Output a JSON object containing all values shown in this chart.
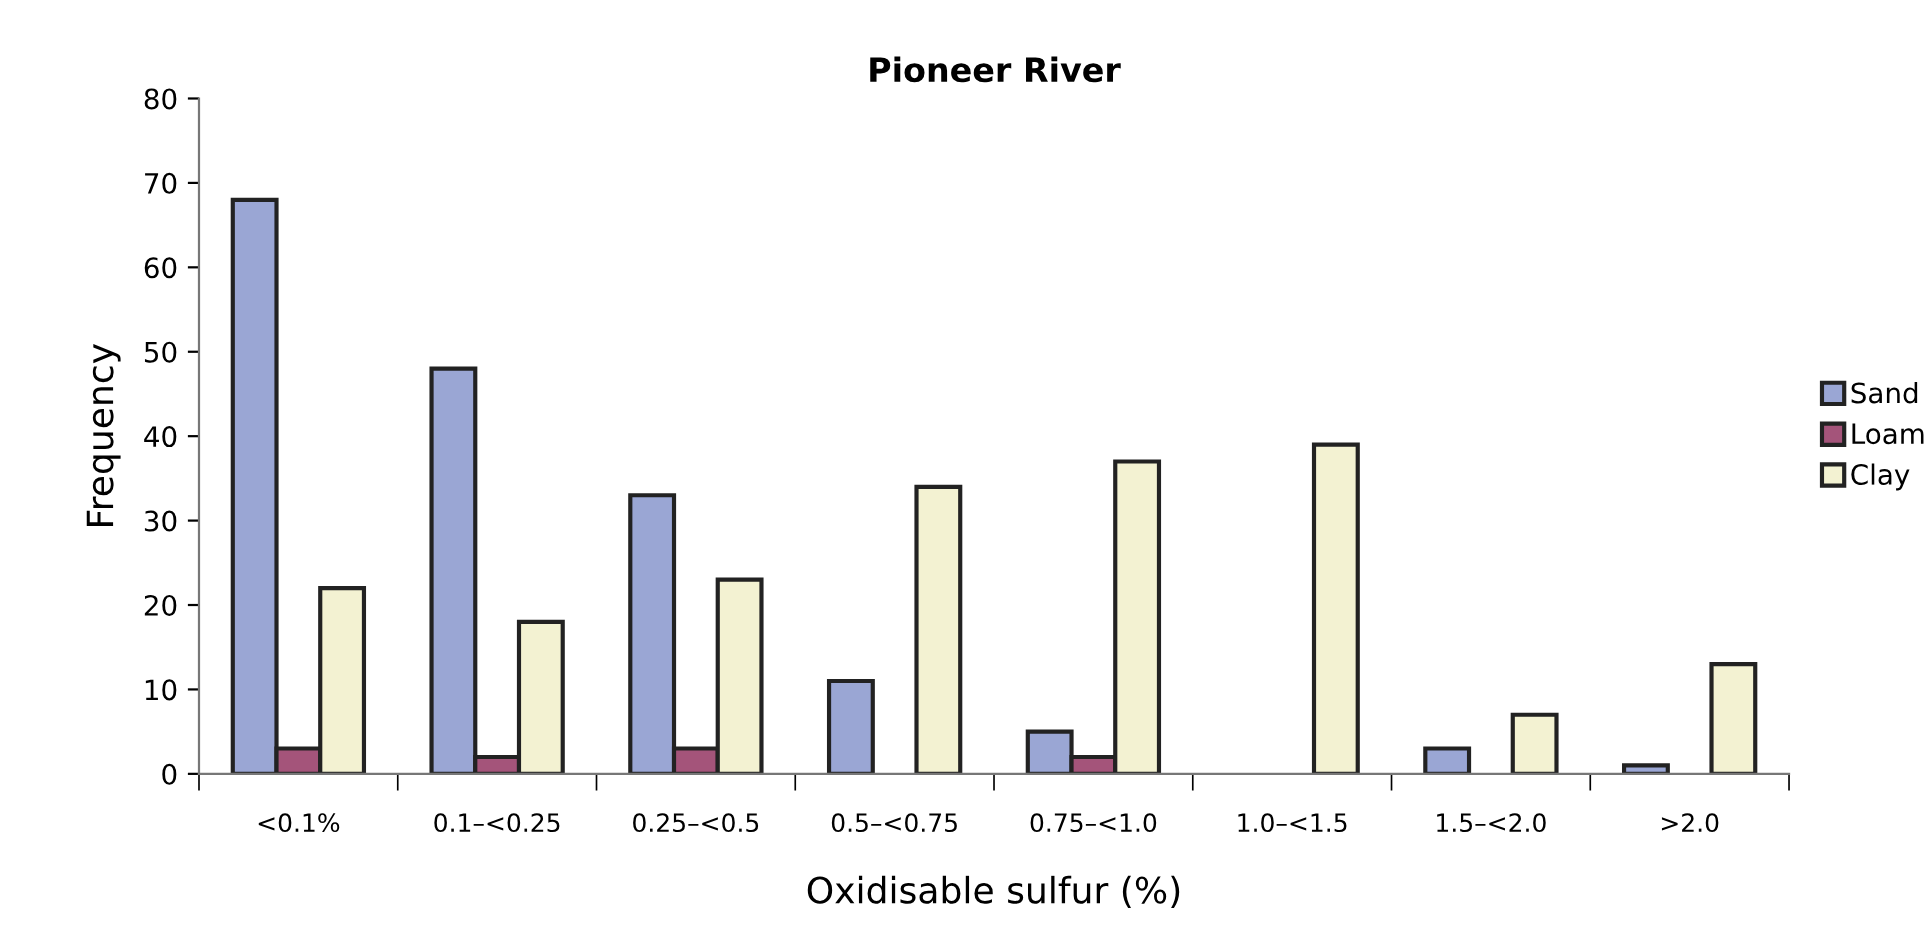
{
  "chart_data": {
    "type": "bar",
    "title": "Pioneer River",
    "xlabel": "Oxidisable sulfur (%)",
    "ylabel": "Frequency",
    "categories": [
      "<0.1%",
      "0.1–<0.25",
      "0.25–<0.5",
      "0.5–<0.75",
      "0.75–<1.0",
      "1.0–<1.5",
      "1.5–<2.0",
      ">2.0"
    ],
    "series": [
      {
        "name": "Sand",
        "color": "#9aa6d4",
        "values": [
          68,
          48,
          33,
          11,
          5,
          null,
          3,
          1
        ]
      },
      {
        "name": "Loam",
        "color": "#a4547a",
        "values": [
          3,
          2,
          3,
          null,
          2,
          null,
          null,
          null
        ]
      },
      {
        "name": "Clay",
        "color": "#f3f2d2",
        "values": [
          22,
          18,
          23,
          34,
          37,
          39,
          7,
          13
        ]
      }
    ],
    "ylim": [
      0,
      80
    ],
    "yticks": [
      0,
      10,
      20,
      30,
      40,
      50,
      60,
      70,
      80
    ],
    "grid": false,
    "legend": "right"
  }
}
